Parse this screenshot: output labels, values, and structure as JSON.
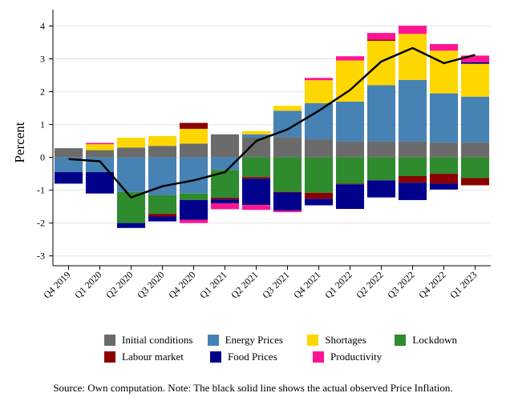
{
  "chart_data": {
    "type": "bar",
    "stacked": true,
    "ylabel": "Percent",
    "ylim": [
      -3.3,
      4.5
    ],
    "yticks": [
      -3,
      -2,
      -1,
      0,
      1,
      2,
      3,
      4
    ],
    "ytick_labels": [
      "-3",
      "-2",
      "-1",
      "0",
      "1",
      "2",
      "3",
      "4"
    ],
    "grid": true,
    "categories": [
      "Q4 2019",
      "Q1 2020",
      "Q2 2020",
      "Q3 2020",
      "Q4 2020",
      "Q1 2021",
      "Q2 2021",
      "Q3 2021",
      "Q4 2021",
      "Q1 2022",
      "Q2 2022",
      "Q3 2022",
      "Q4 2022",
      "Q1 2023"
    ],
    "series": [
      {
        "name": "Initial conditions",
        "color": "#6b6b6b",
        "values": [
          0.28,
          0.22,
          0.3,
          0.35,
          0.42,
          0.7,
          0.6,
          0.62,
          0.55,
          0.48,
          0.48,
          0.48,
          0.45,
          0.45
        ]
      },
      {
        "name": "Energy Prices",
        "color": "#4682b4",
        "values": [
          -0.45,
          -0.45,
          -1.05,
          -1.15,
          -1.1,
          -0.38,
          0.1,
          0.8,
          1.1,
          1.22,
          1.72,
          1.88,
          1.5,
          1.4
        ]
      },
      {
        "name": "Shortages",
        "color": "#ffd700",
        "values": [
          0,
          0.18,
          0.3,
          0.3,
          0.45,
          0,
          0.1,
          0.15,
          0.7,
          1.25,
          1.35,
          1.4,
          1.3,
          1.0
        ]
      },
      {
        "name": "Lockdown",
        "color": "#2e8b2e",
        "values": [
          0,
          0,
          -0.95,
          -0.57,
          -0.2,
          -0.85,
          -0.6,
          -1.05,
          -1.08,
          -0.8,
          -0.7,
          -0.57,
          -0.5,
          -0.63
        ]
      },
      {
        "name": "Labour market",
        "color": "#8b0000",
        "values": [
          0,
          0,
          0,
          -0.08,
          0.18,
          -0.05,
          -0.05,
          -0.02,
          -0.18,
          -0.02,
          0.04,
          -0.2,
          -0.3,
          -0.22
        ]
      },
      {
        "name": "Food Prices",
        "color": "#00008b",
        "values": [
          -0.35,
          -0.65,
          -0.15,
          -0.15,
          -0.6,
          -0.12,
          -0.8,
          -0.55,
          -0.2,
          -0.75,
          -0.52,
          -0.53,
          -0.18,
          0.05
        ]
      },
      {
        "name": "Productivity",
        "color": "#ff1493",
        "values": [
          0,
          0.04,
          0,
          0,
          -0.1,
          -0.18,
          -0.15,
          -0.05,
          0.07,
          0.13,
          0.2,
          0.25,
          0.2,
          0.2
        ]
      }
    ],
    "line": {
      "name": "Price Inflation",
      "color": "#000000",
      "values": [
        -0.05,
        -0.12,
        -1.22,
        -0.88,
        -0.7,
        -0.45,
        0.5,
        0.85,
        1.42,
        2.05,
        2.92,
        3.33,
        2.87,
        3.12
      ]
    },
    "legend_placement": "bottom"
  },
  "legend": {
    "rows": [
      [
        {
          "label": "Initial conditions",
          "color": "#6b6b6b"
        },
        {
          "label": "Energy Prices",
          "color": "#4682b4"
        },
        {
          "label": "Shortages",
          "color": "#ffd700"
        },
        {
          "label": "Lockdown",
          "color": "#2e8b2e"
        }
      ],
      [
        {
          "label": "Labour market",
          "color": "#8b0000"
        },
        {
          "label": "Food Prices",
          "color": "#00008b"
        },
        {
          "label": "Productivity",
          "color": "#ff1493"
        }
      ]
    ]
  },
  "source_note": "Source: Own computation. Note: The black solid line shows the actual observed Price Inflation."
}
